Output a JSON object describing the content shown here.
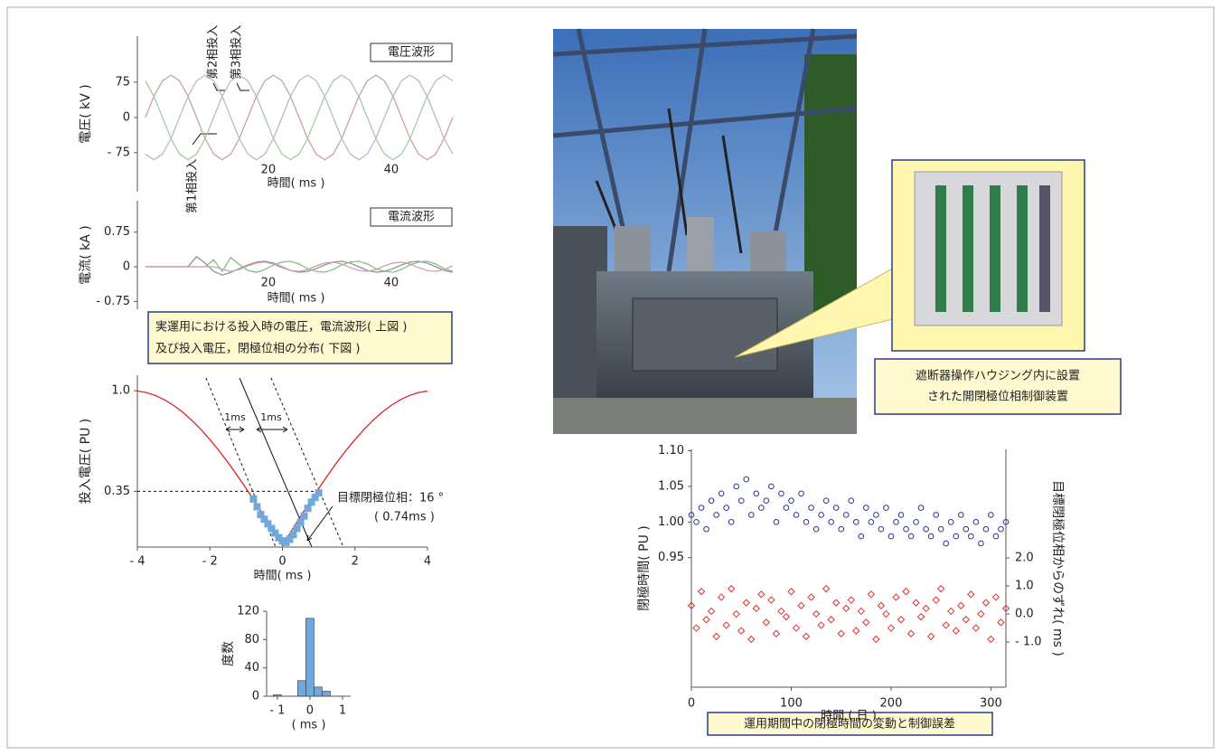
{
  "chart_data": [
    {
      "type": "line",
      "title": "電圧波形",
      "x_label": "時間( ms )",
      "y_label": "電圧( kV )",
      "annotations": [
        "第1相投入",
        "第2相投入",
        "第3相投入"
      ],
      "x": [
        0,
        1.39,
        2.78,
        4.17,
        5.56,
        6.94,
        8.33,
        9.72,
        11.11,
        12.5,
        13.89,
        15.28,
        16.67,
        18.06,
        19.44,
        20.83,
        22.22,
        23.61,
        25,
        26.39,
        27.78,
        29.17,
        30.56,
        31.94,
        33.33,
        34.72,
        36.11,
        37.5,
        38.89,
        40.28,
        41.67,
        43.06,
        44.44,
        45.83,
        47.22,
        48.61,
        50
      ],
      "series": [
        {
          "color": "#c8a0a8",
          "values": [
            0,
            45,
            78,
            90,
            78,
            45,
            0,
            -45,
            -78,
            -90,
            -78,
            -45,
            0,
            45,
            78,
            90,
            78,
            45,
            0,
            -45,
            -78,
            -90,
            -78,
            -45,
            0,
            45,
            78,
            90,
            78,
            45,
            0,
            -45,
            -78,
            -90,
            -78,
            -45,
            0
          ]
        },
        {
          "color": "#a8c8a8",
          "values": [
            78,
            45,
            0,
            -45,
            -78,
            -90,
            -78,
            -45,
            0,
            45,
            78,
            90,
            78,
            45,
            0,
            -45,
            -78,
            -90,
            -78,
            -45,
            0,
            45,
            78,
            90,
            78,
            45,
            0,
            -45,
            -78,
            -90,
            -78,
            -45,
            0,
            45,
            78,
            90,
            78
          ]
        },
        {
          "color": "#b8b8d0",
          "values": [
            -78,
            -90,
            -78,
            -45,
            0,
            45,
            78,
            90,
            78,
            45,
            0,
            -45,
            -78,
            -90,
            -78,
            -45,
            0,
            45,
            78,
            90,
            78,
            45,
            0,
            -45,
            -78,
            -90,
            -78,
            -45,
            0,
            45,
            78,
            90,
            78,
            45,
            0,
            -45,
            -78
          ]
        }
      ],
      "xlim": [
        -1.3,
        50.3
      ],
      "ylim": [
        -158,
        173
      ],
      "xticks": [
        20,
        40
      ],
      "yticks": [
        75,
        0,
        {
          "value": -75,
          "label": "- 75"
        }
      ]
    },
    {
      "type": "line",
      "title": "電流波形",
      "x_label": "時間( ms )",
      "y_label": "電流( kA )",
      "x": [
        0,
        1.39,
        2.78,
        4.17,
        5.56,
        6.94,
        8.33,
        9.72,
        11.11,
        12.5,
        13.89,
        15.28,
        16.67,
        18.06,
        19.44,
        20.83,
        22.22,
        23.61,
        25,
        26.39,
        27.78,
        29.17,
        30.56,
        31.94,
        33.33,
        34.72,
        36.11,
        37.5,
        38.89,
        40.28,
        41.67,
        43.06,
        44.44,
        45.83,
        47.22,
        48.61,
        50
      ],
      "series": [
        {
          "color": "#9090a0",
          "values": [
            0,
            0,
            0,
            0,
            0,
            0,
            0.22,
            0.08,
            -0.1,
            -0.18,
            -0.12,
            -0.04,
            0.04,
            0.1,
            0.12,
            0.08,
            0,
            -0.08,
            -0.12,
            -0.1,
            -0.04,
            0.04,
            0.1,
            0.12,
            0.08,
            0,
            -0.08,
            -0.12,
            -0.1,
            -0.04,
            0.04,
            0.1,
            0.12,
            0.08,
            0,
            -0.08,
            -0.12
          ]
        },
        {
          "color": "#80c080",
          "values": [
            0,
            0,
            0,
            0,
            0,
            0,
            0,
            0,
            0.15,
            -0.1,
            0.2,
            0.05,
            -0.08,
            -0.12,
            -0.06,
            0.04,
            0.1,
            0.12,
            0.06,
            -0.04,
            -0.1,
            -0.12,
            -0.06,
            0.04,
            0.1,
            0.12,
            0.06,
            -0.04,
            -0.1,
            -0.12,
            -0.06,
            0.04,
            0.1,
            0.12,
            0.06,
            -0.04,
            -0.1
          ]
        },
        {
          "color": "#d0a0b0",
          "values": [
            0,
            0,
            0,
            0,
            0,
            0,
            0,
            0,
            0,
            -0.05,
            -0.1,
            -0.06,
            0.02,
            0.08,
            0.1,
            0.06,
            -0.02,
            -0.08,
            -0.1,
            -0.06,
            0.02,
            0.08,
            0.1,
            0.06,
            -0.02,
            -0.08,
            -0.1,
            -0.06,
            0.02,
            0.08,
            0.1,
            0.06,
            -0.02,
            -0.08,
            -0.1,
            -0.06,
            0.02
          ]
        }
      ],
      "xlim": [
        -1.3,
        50.3
      ],
      "ylim": [
        -0.92,
        1.43
      ],
      "xticks": [
        20,
        40
      ],
      "yticks": [
        0.75,
        0,
        {
          "value": -0.75,
          "label": "- 0.75"
        }
      ]
    },
    {
      "type": "line",
      "x_label": "時間( ms )",
      "y_label": "投入電圧( PU )",
      "annotations": [
        "1ms",
        "1ms",
        "目標閉極位相：16 °",
        "( 0.74ms )"
      ],
      "series": [
        {
          "color": "#e02020",
          "x": [
            -4,
            -3.75,
            -3.5,
            -3.25,
            -3,
            -2.75,
            -2.5,
            -2.25,
            -2,
            -1.75,
            -1.5,
            -1.25,
            -1,
            -0.75,
            -0.5,
            -0.25,
            0,
            0.25,
            0.5,
            0.75,
            1,
            1.25,
            1.5,
            1.75,
            2,
            2.25,
            2.5,
            2.75,
            3,
            3.25,
            3.5,
            3.75,
            4
          ],
          "values": [
            0.998,
            0.988,
            0.969,
            0.941,
            0.905,
            0.861,
            0.809,
            0.75,
            0.684,
            0.613,
            0.536,
            0.454,
            0.368,
            0.279,
            0.188,
            0.094,
            0,
            0.094,
            0.188,
            0.279,
            0.368,
            0.454,
            0.536,
            0.613,
            0.684,
            0.75,
            0.809,
            0.861,
            0.905,
            0.941,
            0.969,
            0.988,
            0.998
          ]
        },
        {
          "type": "scatter",
          "color": "#6fa8dc",
          "x": [
            -0.8,
            -0.7,
            -0.6,
            -0.5,
            -0.4,
            -0.3,
            -0.2,
            -0.1,
            0,
            0.1,
            0.2,
            0.3,
            0.4,
            0.5,
            0.6,
            0.7,
            0.8,
            0.9,
            1.0
          ],
          "values": [
            0.3,
            0.25,
            0.2,
            0.17,
            0.14,
            0.11,
            0.08,
            0.05,
            0.03,
            0.02,
            0.04,
            0.07,
            0.11,
            0.15,
            0.19,
            0.24,
            0.28,
            0.31,
            0.34
          ]
        }
      ],
      "xlim": [
        -4,
        4
      ],
      "ylim": [
        -0.01,
        1.1
      ],
      "xticks": [
        {
          "value": -4,
          "label": "- 4"
        },
        {
          "value": -2,
          "label": "- 2"
        },
        0,
        2,
        4
      ],
      "yticks": [
        {
          "value": 1,
          "label": "1.0"
        },
        0.35
      ]
    },
    {
      "type": "histogram",
      "x_label": "( ms )",
      "y_label": "度数",
      "color": "#6fa8dc",
      "bins": [
        -1.125,
        -0.875,
        -0.625,
        -0.375,
        -0.125,
        0.125,
        0.375,
        0.625
      ],
      "values": [
        2,
        0,
        0,
        22,
        110,
        13,
        7
      ],
      "xlim": [
        -1.33,
        1.25
      ],
      "ylim": [
        0,
        120
      ],
      "xticks": [
        {
          "value": -1,
          "label": "- 1"
        },
        0,
        1
      ],
      "yticks": [
        0,
        40,
        80,
        120
      ]
    },
    {
      "type": "scatter",
      "x_label": "時間 ( 日 )",
      "y_label": "閉極時間( PU )",
      "y2_label": "目標閉極位相からのずれ( ms )",
      "caption": "運用期間中の閉極時間の変動と制御誤差",
      "x": [
        0,
        5,
        10,
        15,
        20,
        25,
        30,
        35,
        40,
        45,
        50,
        55,
        60,
        65,
        70,
        75,
        80,
        85,
        90,
        95,
        100,
        105,
        110,
        115,
        120,
        125,
        130,
        135,
        140,
        145,
        150,
        155,
        160,
        165,
        170,
        175,
        180,
        185,
        190,
        195,
        200,
        205,
        210,
        215,
        220,
        225,
        230,
        235,
        240,
        245,
        250,
        255,
        260,
        265,
        270,
        275,
        280,
        285,
        290,
        295,
        300,
        305,
        310,
        315
      ],
      "series": [
        {
          "color": "#2a3590",
          "marker": "circle",
          "values": [
            1.01,
            1.0,
            1.02,
            0.99,
            1.03,
            1.01,
            1.04,
            1.02,
            1.0,
            1.05,
            1.03,
            1.06,
            1.01,
            1.04,
            1.02,
            1.03,
            1.05,
            1.0,
            1.04,
            1.02,
            1.03,
            1.01,
            1.04,
            1.0,
            1.02,
            0.99,
            1.01,
            1.03,
            1.0,
            1.02,
            0.99,
            1.01,
            1.03,
            1.0,
            0.98,
            1.02,
            1.0,
            1.01,
            0.99,
            1.02,
            0.98,
            1.0,
            1.01,
            0.99,
            0.98,
            1.0,
            1.02,
            0.99,
            0.98,
            1.01,
            0.99,
            0.97,
            1.0,
            0.98,
            1.01,
            0.99,
            0.98,
            1.0,
            0.97,
            0.99,
            1.01,
            0.98,
            0.99,
            1.0
          ]
        },
        {
          "color": "#e03030",
          "marker": "diamond",
          "axis": "y2",
          "values": [
            0.3,
            -0.5,
            0.8,
            -0.2,
            0.1,
            -0.8,
            0.6,
            -0.4,
            0.9,
            0.0,
            -0.6,
            0.4,
            -0.9,
            0.2,
            0.7,
            -0.3,
            0.5,
            -0.7,
            0.1,
            -0.1,
            0.8,
            -0.5,
            0.3,
            -0.8,
            0.6,
            0.0,
            -0.4,
            0.9,
            -0.2,
            0.4,
            -0.7,
            0.2,
            0.5,
            -0.6,
            0.1,
            -0.3,
            0.7,
            -0.9,
            0.3,
            0.0,
            -0.5,
            0.6,
            -0.2,
            0.8,
            -0.7,
            0.4,
            -0.1,
            0.2,
            -0.8,
            0.5,
            0.9,
            -0.4,
            0.1,
            -0.6,
            0.3,
            -0.2,
            0.7,
            -0.5,
            0.0,
            0.4,
            -0.9,
            0.6,
            -0.3,
            0.2
          ]
        }
      ],
      "xlim": [
        0,
        315
      ],
      "ylim": [
        0.768,
        1.102
      ],
      "xticks": [
        0,
        100,
        200,
        300
      ],
      "yticks": [
        0.95,
        {
          "value": 1,
          "label": "1.00"
        },
        1.05,
        {
          "value": 1.1,
          "label": "1.10"
        }
      ],
      "y2lim": [
        -2.61,
        5.87
      ],
      "y2ticks": [
        {
          "value": 2,
          "label": "2.0"
        },
        {
          "value": 1,
          "label": "1.0"
        },
        {
          "value": 0,
          "label": "0.0"
        },
        {
          "value": -1,
          "label": "- 1.0"
        }
      ]
    }
  ],
  "captions": {
    "figure_note": [
      "実運用における投入時の電圧，電流波形( 上図 )",
      "及び投入電圧，閉極位相の分布( 下図 )"
    ],
    "photo_callout": [
      "遮断器操作ハウジング内に設置",
      "された開閉極位相制御装置"
    ]
  }
}
